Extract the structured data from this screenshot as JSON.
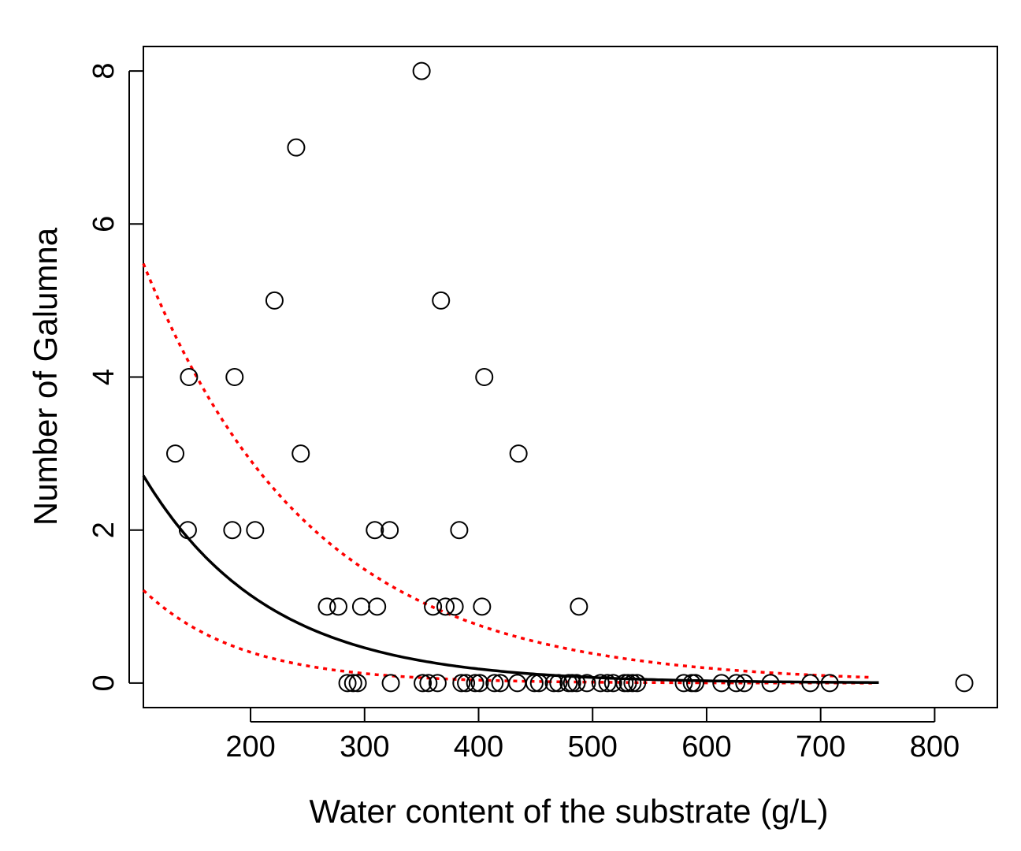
{
  "chart_data": {
    "type": "scatter",
    "xlabel": "Water content of the substrate (g/L)",
    "ylabel": "Number of Galumna",
    "xlim": [
      106,
      855
    ],
    "ylim": [
      -0.32,
      8.32
    ],
    "x_ticks": [
      200,
      300,
      400,
      500,
      600,
      700,
      800
    ],
    "y_ticks": [
      0,
      2,
      4,
      6,
      8
    ],
    "points": [
      {
        "x": 134,
        "y": 3
      },
      {
        "x": 146,
        "y": 4
      },
      {
        "x": 145,
        "y": 2
      },
      {
        "x": 186,
        "y": 4
      },
      {
        "x": 184,
        "y": 2
      },
      {
        "x": 204,
        "y": 2
      },
      {
        "x": 221,
        "y": 5
      },
      {
        "x": 240,
        "y": 7
      },
      {
        "x": 244,
        "y": 3
      },
      {
        "x": 267,
        "y": 1
      },
      {
        "x": 277,
        "y": 1
      },
      {
        "x": 297,
        "y": 1
      },
      {
        "x": 309,
        "y": 2
      },
      {
        "x": 322,
        "y": 2
      },
      {
        "x": 311,
        "y": 1
      },
      {
        "x": 350,
        "y": 8
      },
      {
        "x": 367,
        "y": 5
      },
      {
        "x": 405,
        "y": 4
      },
      {
        "x": 435,
        "y": 3
      },
      {
        "x": 383,
        "y": 2
      },
      {
        "x": 360,
        "y": 1
      },
      {
        "x": 371,
        "y": 1
      },
      {
        "x": 379,
        "y": 1
      },
      {
        "x": 403,
        "y": 1
      },
      {
        "x": 488,
        "y": 1
      },
      {
        "x": 285,
        "y": 0
      },
      {
        "x": 290,
        "y": 0
      },
      {
        "x": 294,
        "y": 0
      },
      {
        "x": 323,
        "y": 0
      },
      {
        "x": 351,
        "y": 0
      },
      {
        "x": 356,
        "y": 0
      },
      {
        "x": 364,
        "y": 0
      },
      {
        "x": 385,
        "y": 0
      },
      {
        "x": 389,
        "y": 0
      },
      {
        "x": 397,
        "y": 0
      },
      {
        "x": 401,
        "y": 0
      },
      {
        "x": 414,
        "y": 0
      },
      {
        "x": 419,
        "y": 0
      },
      {
        "x": 434,
        "y": 0
      },
      {
        "x": 449,
        "y": 0
      },
      {
        "x": 453,
        "y": 0
      },
      {
        "x": 466,
        "y": 0
      },
      {
        "x": 470,
        "y": 0
      },
      {
        "x": 479,
        "y": 0
      },
      {
        "x": 482,
        "y": 0
      },
      {
        "x": 486,
        "y": 0
      },
      {
        "x": 495,
        "y": 0
      },
      {
        "x": 507,
        "y": 0
      },
      {
        "x": 513,
        "y": 0
      },
      {
        "x": 518,
        "y": 0
      },
      {
        "x": 528,
        "y": 0
      },
      {
        "x": 531,
        "y": 0
      },
      {
        "x": 535,
        "y": 0
      },
      {
        "x": 539,
        "y": 0
      },
      {
        "x": 580,
        "y": 0
      },
      {
        "x": 587,
        "y": 0
      },
      {
        "x": 590,
        "y": 0
      },
      {
        "x": 613,
        "y": 0
      },
      {
        "x": 626,
        "y": 0
      },
      {
        "x": 633,
        "y": 0
      },
      {
        "x": 656,
        "y": 0
      },
      {
        "x": 691,
        "y": 0
      },
      {
        "x": 708,
        "y": 0
      },
      {
        "x": 826,
        "y": 0
      }
    ],
    "fit": {
      "x_range": [
        106,
        751
      ],
      "model": "exp(a + b*x)",
      "a": 1.965,
      "b": -0.00913,
      "color": "#000000"
    },
    "ci_upper": {
      "x_range": [
        106,
        745
      ],
      "model": "exp(a + b*x)",
      "a": 2.415,
      "b": -0.00673,
      "color": "#ff0000"
    },
    "ci_lower": {
      "x_range": [
        106,
        745
      ],
      "model": "exp(a + b*x)",
      "a": 1.434,
      "b": -0.0117,
      "color": "#ff0000"
    },
    "grid": false,
    "legend": "none"
  }
}
